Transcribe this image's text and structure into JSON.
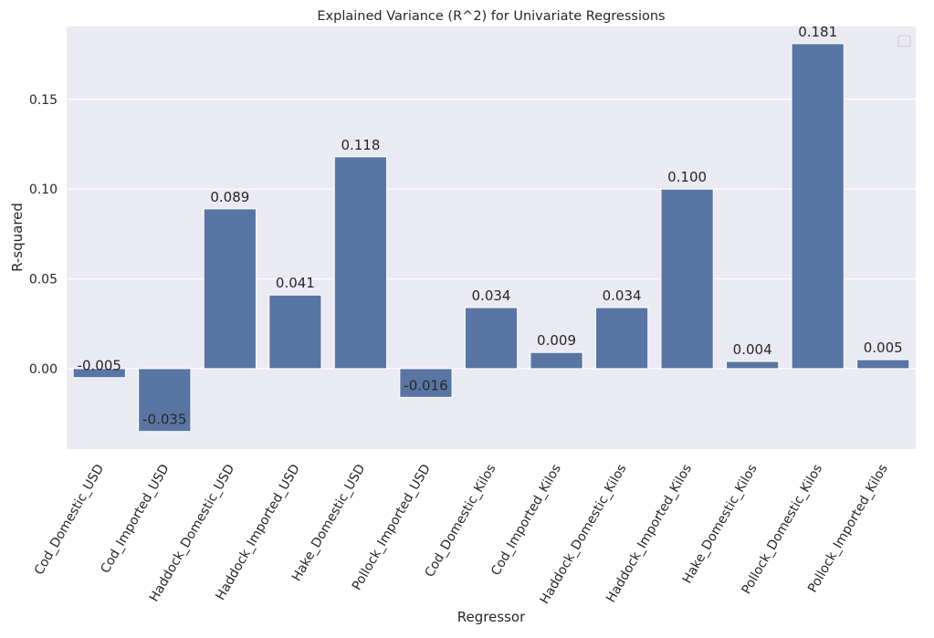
{
  "chart_data": {
    "type": "bar",
    "title": "Explained Variance (R^2) for Univariate Regressions",
    "xlabel": "Regressor",
    "ylabel": "R-squared",
    "categories": [
      "Cod_Domestic_USD",
      "Cod_Imported_USD",
      "Haddock_Domestic_USD",
      "Haddock_Imported_USD",
      "Hake_Domestic_USD",
      "Pollock_Imported_USD",
      "Cod_Domestic_Kilos",
      "Cod_Imported_Kilos",
      "Haddock_Domestic_Kilos",
      "Haddock_Imported_Kilos",
      "Hake_Domestic_Kilos",
      "Pollock_Domestic_Kilos",
      "Pollock_Imported_Kilos"
    ],
    "values": [
      -0.005,
      -0.035,
      0.089,
      0.041,
      0.118,
      -0.016,
      0.034,
      0.009,
      0.034,
      0.1,
      0.004,
      0.181,
      0.005
    ],
    "value_labels": [
      "-0.005",
      "-0.035",
      "0.089",
      "0.041",
      "0.118",
      "-0.016",
      "0.034",
      "0.009",
      "0.034",
      "0.100",
      "0.004",
      "0.181",
      "0.005"
    ],
    "yticks": [
      "0.00",
      "0.05",
      "0.10",
      "0.15"
    ],
    "ytick_values": [
      0.0,
      0.05,
      0.1,
      0.15
    ],
    "ylim": [
      -0.0448,
      0.1906
    ],
    "grid": true,
    "legend": "top-right (empty)",
    "colors": {
      "bar": "#5975a4",
      "plot_background": "#eaeaf2",
      "grid": "#ffffff"
    }
  }
}
